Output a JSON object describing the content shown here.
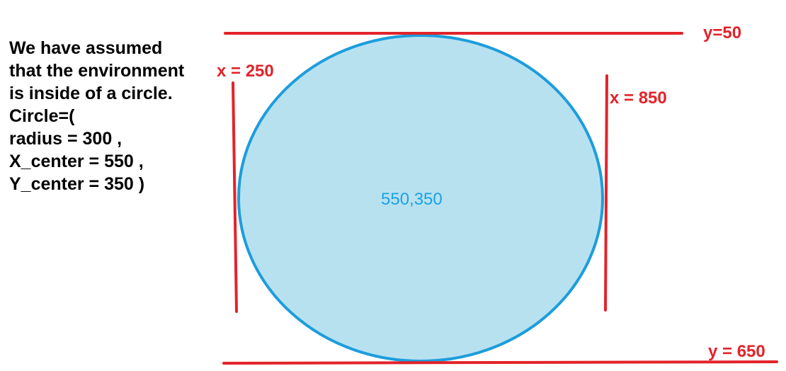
{
  "description_lines": [
    "We have assumed",
    "that the environment",
    "is inside of a circle.",
    "Circle=(",
    "radius = 300 ,",
    "X_center = 550 ,",
    "Y_center = 350 )"
  ],
  "labels": {
    "top_line": "y=50",
    "bottom_line": "y = 650",
    "left_line": "x = 250",
    "right_line": "x = 850",
    "center": "550,350"
  },
  "colors": {
    "boundary_line": "#e2232a",
    "circle_fill": "#b8e1f0",
    "circle_stroke": "#1d9ddc",
    "center_text": "#1aa3e3",
    "note_text": "#000000"
  }
}
